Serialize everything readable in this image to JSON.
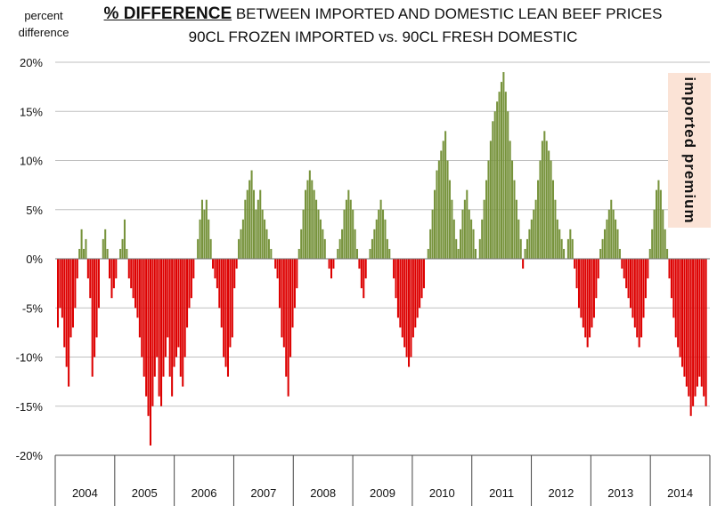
{
  "header": {
    "ylabel_line1": "percent",
    "ylabel_line2": "difference",
    "title_emphasis": "% DIFFERENCE",
    "title_rest": " BETWEEN IMPORTED AND DOMESTIC LEAN BEEF PRICES",
    "subtitle": "90CL FROZEN IMPORTED vs. 90CL FRESH DOMESTIC",
    "annotation": "imported premium"
  },
  "chart_data": {
    "type": "bar",
    "ylim": [
      -20,
      20
    ],
    "y_ticks": [
      20,
      15,
      10,
      5,
      0,
      -5,
      -10,
      -15,
      -20
    ],
    "y_tick_labels": [
      "20%",
      "15%",
      "10%",
      "5%",
      "0%",
      "-5%",
      "-10%",
      "-15%",
      "-20%"
    ],
    "years": [
      "2004",
      "2005",
      "2006",
      "2007",
      "2008",
      "2009",
      "2010",
      "2011",
      "2012",
      "2013",
      "2014"
    ],
    "grid": true,
    "colors": {
      "positive": "#77933c",
      "negative": "#dd0000",
      "annotation_bg": "#fbe3d6"
    },
    "series": [
      {
        "values": [
          -7,
          -5,
          -6,
          -9,
          -11,
          -13,
          -8,
          -7,
          -5,
          -2,
          1,
          3,
          1,
          2,
          -2,
          -4,
          -12,
          -10,
          -8,
          -5,
          0,
          2,
          3,
          1,
          -2,
          -4,
          -3,
          -2,
          0,
          1,
          2,
          4,
          1,
          -2,
          -3,
          -4,
          -5,
          -6,
          -8,
          -10,
          -12,
          -14,
          -16,
          -19,
          -15,
          -12,
          -10,
          -14,
          -15,
          -12,
          -10,
          -8,
          -12,
          -14,
          -11,
          -10,
          -9,
          -12,
          -13,
          -10,
          -7,
          -5,
          -4,
          -2,
          0,
          2,
          4,
          6,
          5,
          6,
          4,
          2,
          -1,
          -2,
          -3,
          -5,
          -7,
          -10,
          -11,
          -12,
          -9,
          -8,
          -3,
          -1,
          2,
          3,
          4,
          6,
          7,
          8,
          9,
          7,
          5,
          6,
          7,
          5,
          4,
          3,
          2,
          1,
          0,
          -1,
          -2,
          -5,
          -8,
          -9,
          -12,
          -14,
          -10,
          -7,
          -5,
          -3,
          1,
          3,
          5,
          7,
          8,
          9,
          8,
          7,
          6,
          5,
          4,
          3,
          2,
          0,
          -1,
          -2,
          -1,
          0,
          1,
          2,
          3,
          5,
          6,
          7,
          6,
          5,
          3,
          1,
          -1,
          -3,
          -4,
          -2,
          0,
          1,
          2,
          3,
          4,
          5,
          6,
          5,
          4,
          2,
          1,
          0,
          -2,
          -4,
          -6,
          -7,
          -8,
          -9,
          -10,
          -11,
          -10,
          -8,
          -7,
          -6,
          -5,
          -4,
          -3,
          0,
          1,
          3,
          5,
          7,
          9,
          10,
          11,
          12,
          13,
          10,
          8,
          6,
          4,
          2,
          1,
          3,
          5,
          6,
          7,
          5,
          4,
          3,
          1,
          0,
          2,
          4,
          6,
          8,
          10,
          12,
          14,
          15,
          16,
          17,
          18,
          19,
          17,
          15,
          12,
          10,
          8,
          6,
          4,
          2,
          -1,
          1,
          2,
          3,
          4,
          5,
          6,
          8,
          10,
          12,
          13,
          12,
          11,
          10,
          8,
          6,
          4,
          3,
          2,
          1,
          0,
          2,
          3,
          2,
          -1,
          -3,
          -5,
          -6,
          -7,
          -8,
          -9,
          -8,
          -7,
          -6,
          -4,
          -2,
          1,
          2,
          3,
          4,
          5,
          6,
          5,
          4,
          3,
          1,
          -1,
          -2,
          -3,
          -4,
          -5,
          -6,
          -7,
          -8,
          -9,
          -8,
          -6,
          -4,
          -2,
          1,
          3,
          5,
          7,
          8,
          7,
          5,
          3,
          1,
          -2,
          -4,
          -6,
          -8,
          -9,
          -10,
          -11,
          -12,
          -13,
          -14,
          -16,
          -15,
          -14,
          -13,
          -12,
          -13,
          -14,
          -15
        ]
      }
    ]
  }
}
